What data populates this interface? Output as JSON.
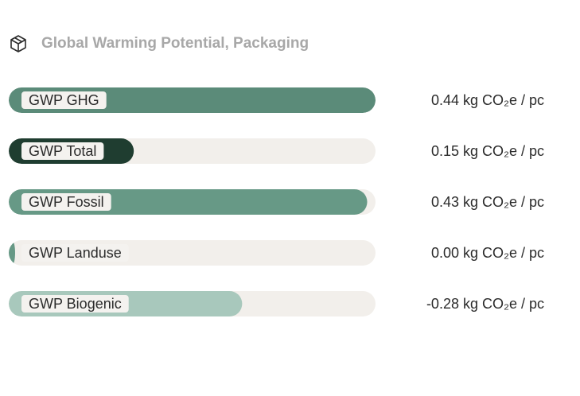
{
  "chart_data": {
    "type": "bar",
    "orientation": "horizontal",
    "title": "Global Warming Potential, Packaging",
    "categories": [
      "GWP GHG",
      "GWP Total",
      "GWP Fossil",
      "GWP Landuse",
      "GWP Biogenic"
    ],
    "values": [
      0.44,
      0.15,
      0.43,
      0.0,
      -0.28
    ],
    "value_labels": [
      "0.44 kg CO₂e / pc",
      "0.15 kg CO₂e / pc",
      "0.43 kg CO₂e / pc",
      "0.00 kg CO₂e / pc",
      "-0.28 kg CO₂e / pc"
    ],
    "colors": [
      "#5b8b79",
      "#1f3d30",
      "#679986",
      "#679986",
      "#a8c8bc"
    ]
  }
}
